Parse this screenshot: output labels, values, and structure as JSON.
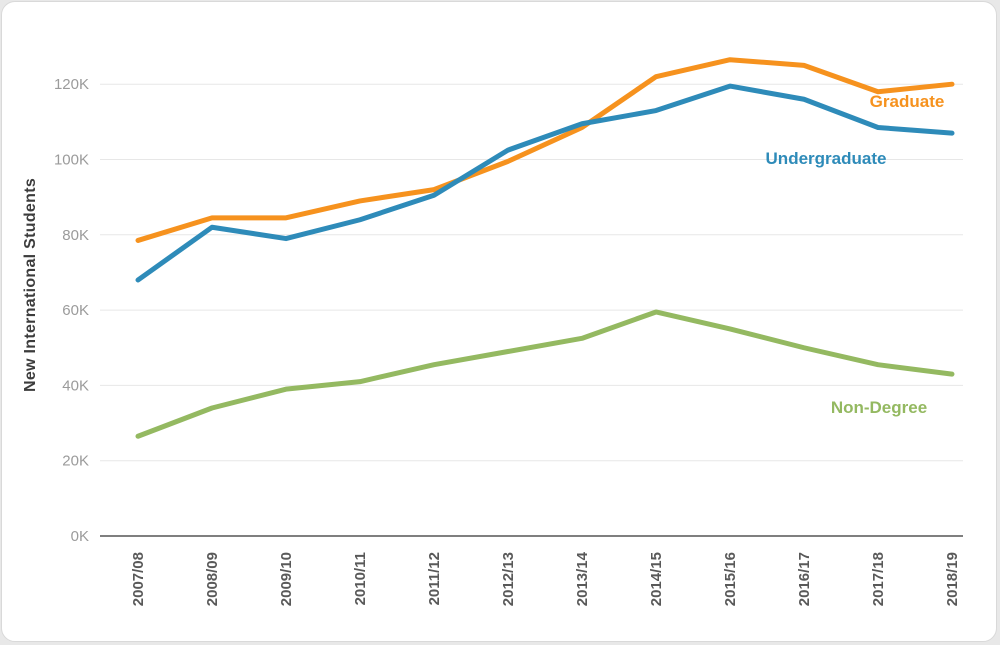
{
  "chart_data": {
    "type": "line",
    "title": "",
    "xlabel": "",
    "ylabel": "New International Students",
    "categories": [
      "2007/08",
      "2008/09",
      "2009/10",
      "2010/11",
      "2011/12",
      "2012/13",
      "2013/14",
      "2014/15",
      "2015/16",
      "2016/17",
      "2017/18",
      "2018/19"
    ],
    "y_ticks": [
      "0K",
      "20K",
      "40K",
      "60K",
      "80K",
      "100K",
      "120K"
    ],
    "y_tick_values": [
      0,
      20000,
      40000,
      60000,
      80000,
      100000,
      120000
    ],
    "ylim": [
      0,
      135000
    ],
    "grid": true,
    "legend_position": "inline-right",
    "series": [
      {
        "name": "Graduate",
        "color": "#F6921E",
        "values": [
          78500,
          84500,
          84500,
          89000,
          92000,
          99500,
          108500,
          122000,
          126500,
          125000,
          118000,
          120000
        ]
      },
      {
        "name": "Undergraduate",
        "color": "#2E8BB9",
        "values": [
          68000,
          82000,
          79000,
          84000,
          90500,
          102500,
          109500,
          113000,
          119500,
          116000,
          108500,
          107000
        ]
      },
      {
        "name": "Non-Degree",
        "color": "#94B961",
        "values": [
          26500,
          34000,
          39000,
          41000,
          45500,
          49000,
          52500,
          59500,
          55000,
          50000,
          45500,
          43000
        ]
      }
    ]
  },
  "axis": {
    "axis_line_color": "#7f7f7f",
    "gridline_color": "#e7e7e7",
    "y_tick_color": "#9b9b9b",
    "x_tick_color": "#595959"
  }
}
